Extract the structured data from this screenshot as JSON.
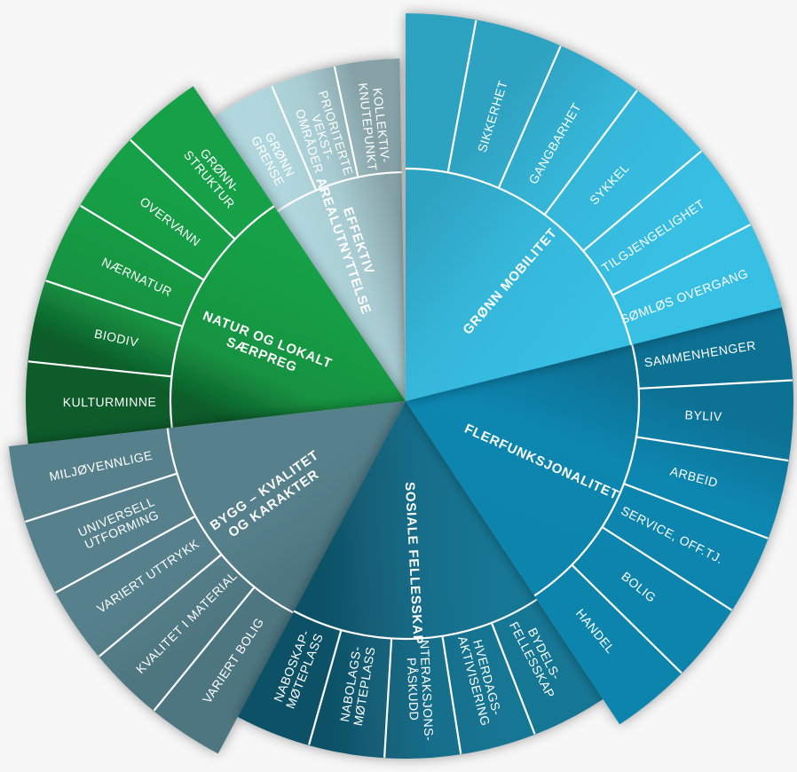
{
  "background_color": "#f7f7f7",
  "wheel": {
    "separator_color": "#ffffff",
    "label_color": "#ffffff",
    "sectors": [
      {
        "id": "effektiv-arealutnyttelse",
        "label_lines": [
          "EFFEKTIV",
          "AREALUTNYTTELSE"
        ],
        "color": "#a7cbd1",
        "children": [
          {
            "label_lines": [
              "GRØNN",
              "GRENSE"
            ]
          },
          {
            "label_lines": [
              "PRIORITERTE",
              "VEKST-",
              "OMRÅDER"
            ]
          },
          {
            "label_lines": [
              "KOLLEKTIV-",
              "KNUTEPUNKT"
            ]
          }
        ]
      },
      {
        "id": "natur-og-lokalt-saerpreg",
        "label_lines": [
          "NATUR OG LOKALT",
          "SÆRPREG"
        ],
        "color": "#169a44",
        "children": [
          {
            "label_lines": [
              "KULTURMINNE"
            ]
          },
          {
            "label_lines": [
              "BIODIV"
            ]
          },
          {
            "label_lines": [
              "NÆRNATUR"
            ]
          },
          {
            "label_lines": [
              "OVERVANN"
            ]
          },
          {
            "label_lines": [
              "GRØNN-",
              "STRUKTUR"
            ]
          }
        ]
      },
      {
        "id": "bygg-kvalitet-og-karakter",
        "label_lines": [
          "BYGG – KVALITET",
          "OG KARAKTER"
        ],
        "color": "#55808b",
        "children": [
          {
            "label_lines": [
              "VARIERT BOLIG"
            ]
          },
          {
            "label_lines": [
              "KVALITET I MATERIAL"
            ]
          },
          {
            "label_lines": [
              "VARIERT UTTRYKK"
            ]
          },
          {
            "label_lines": [
              "UNIVERSELL",
              "UTFORMING"
            ]
          },
          {
            "label_lines": [
              "MILJØVENNLIGE"
            ]
          }
        ]
      },
      {
        "id": "sosiale-fellesskap",
        "label_lines": [
          "SOSIALE FELLESSKAP"
        ],
        "color": "#16718e",
        "children": [
          {
            "label_lines": [
              "BYDELS-",
              "FELLESSKAP"
            ]
          },
          {
            "label_lines": [
              "HVERDAGS-",
              "AKTIVISERING"
            ]
          },
          {
            "label_lines": [
              "INTERAKSJONS-",
              "PÅSKUDD"
            ]
          },
          {
            "label_lines": [
              "NABOLAGS-",
              "MØTEPLASS"
            ]
          },
          {
            "label_lines": [
              "NABOSKAP-",
              "MØTEPLASS"
            ]
          }
        ]
      },
      {
        "id": "flerfunksjonalitet",
        "label_lines": [
          "FLERFUNKSJONALITET"
        ],
        "color": "#0f85ae",
        "children": [
          {
            "label_lines": [
              "SAMMENHENGER"
            ]
          },
          {
            "label_lines": [
              "BYLIV"
            ]
          },
          {
            "label_lines": [
              "ARBEID"
            ]
          },
          {
            "label_lines": [
              "SERVICE, OFF.TJ."
            ]
          },
          {
            "label_lines": [
              "BOLIG"
            ]
          },
          {
            "label_lines": [
              "HANDEL"
            ]
          }
        ]
      },
      {
        "id": "gronn-mobilitet",
        "label_lines": [
          "GRØNN MOBILITET"
        ],
        "color": "#35b6d9",
        "children": [
          {
            "label_lines": [
              ""
            ]
          },
          {
            "label_lines": [
              "SIKKERHET"
            ]
          },
          {
            "label_lines": [
              "GANGBARHET"
            ]
          },
          {
            "label_lines": [
              "SYKKEL"
            ]
          },
          {
            "label_lines": [
              "TILGJENGELIGHET"
            ]
          },
          {
            "label_lines": [
              "SØMLØS OVERGANG"
            ]
          }
        ]
      }
    ]
  }
}
